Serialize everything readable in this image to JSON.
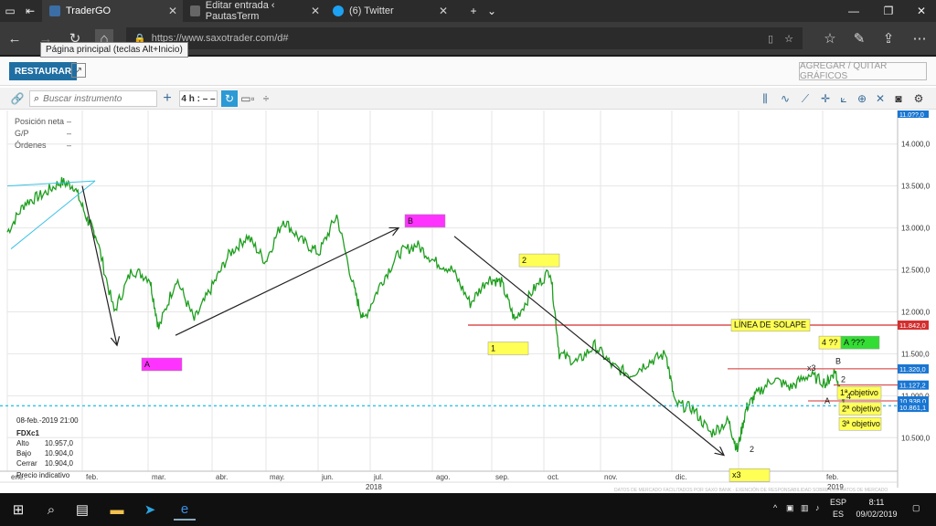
{
  "browser": {
    "tabs": [
      {
        "title": "TraderGO",
        "active": true
      },
      {
        "title": "Editar entrada ‹ PautasTerm",
        "active": false
      },
      {
        "title": "(6) Twitter",
        "active": false
      }
    ],
    "url": "https://www.saxotrader.com/d#",
    "home_tooltip": "Página principal (teclas Alt+Inicio)"
  },
  "app": {
    "restore_label": "RESTAURAR",
    "add_charts_label": "AGREGAR / QUITAR GRÁFICOS",
    "search_placeholder": "Buscar instrumento",
    "period": "4 h : – –",
    "panel": {
      "symbol_tag": "FDXc1",
      "position_label": "Posición neta",
      "position_value": "–",
      "pl_label": "G/P",
      "pl_value": "–",
      "orders_label": "Órdenes",
      "orders_value": "–"
    },
    "ohlc": {
      "date": "08-feb.-2019 21:00",
      "symbol": "FDXc1",
      "high_label": "Alto",
      "high": "10.957,0",
      "low_label": "Bajo",
      "low": "10.904,0",
      "close_label": "Cerrar",
      "close": "10.904,0",
      "note": "Precio indicativo"
    },
    "footer_note": "DATOS DE MERCADO FACILITADOS POR SAXO BANK · EXENCIÓN DE RESPONSABILIDAD SOBRE LOS DATOS DE MERCADO"
  },
  "chart_data": {
    "type": "line",
    "ylim": [
      10100,
      14400
    ],
    "yticks": [
      "14.000,0",
      "13.500,0",
      "13.000,0",
      "12.500,0",
      "12.000,0",
      "11.500,0",
      "11.000,0",
      "10.500,0"
    ],
    "ytick_values": [
      14000,
      13500,
      13000,
      12500,
      12000,
      11500,
      11000,
      10500
    ],
    "xticks": [
      "ene.",
      "feb.",
      "mar.",
      "abr.",
      "may.",
      "jun.",
      "jul.",
      "ago.",
      "sep.",
      "oct.",
      "nov.",
      "dic.",
      "ene.",
      "feb."
    ],
    "years": [
      "2018",
      "2019"
    ],
    "price_tags": [
      {
        "label": "11.842,0",
        "value": 11842,
        "color": "#d32f2f"
      },
      {
        "label": "11.320,0",
        "value": 11320,
        "color": "#1976d2"
      },
      {
        "label": "11.127,2",
        "value": 11127,
        "color": "#1976d2"
      },
      {
        "label": "10.938,0",
        "value": 10938,
        "color": "#1976d2"
      },
      {
        "label": "10.861,1",
        "value": 10861,
        "color": "#1976d2"
      }
    ],
    "current_price_label": "11.0??,0",
    "series": [
      {
        "x": [
          0,
          0.02,
          0.04,
          0.06,
          0.075,
          0.09,
          0.1,
          0.12,
          0.14,
          0.16,
          0.17,
          0.19,
          0.21,
          0.23,
          0.25,
          0.27,
          0.29,
          0.31,
          0.33,
          0.35,
          0.37,
          0.39,
          0.4,
          0.42,
          0.44,
          0.46,
          0.48,
          0.5,
          0.52,
          0.54,
          0.555,
          0.57,
          0.59,
          0.61,
          0.62,
          0.64,
          0.66,
          0.68,
          0.7,
          0.72,
          0.74,
          0.75,
          0.77,
          0.79,
          0.81,
          0.82,
          0.83,
          0.84,
          0.86,
          0.88,
          0.9,
          0.92,
          0.93,
          0.935,
          0.94
        ],
        "values": [
          12950,
          13300,
          13400,
          13550,
          13500,
          13100,
          12900,
          12000,
          12500,
          12400,
          11800,
          12400,
          11900,
          12300,
          12700,
          12900,
          12600,
          13100,
          12850,
          12700,
          13150,
          12250,
          11900,
          12350,
          12700,
          12800,
          12600,
          12500,
          12100,
          12400,
          12350,
          11900,
          12250,
          12500,
          11500,
          11400,
          11600,
          11350,
          11250,
          11400,
          11500,
          10900,
          10850,
          10550,
          10700,
          10350,
          10850,
          11000,
          11200,
          11100,
          11250,
          11150,
          11300,
          11050,
          10950
        ]
      }
    ],
    "annotations": [
      {
        "label": "A",
        "bg": "#ff33ff"
      },
      {
        "label": "B",
        "bg": "#ff33ff"
      },
      {
        "label": "1",
        "bg": "#ffff55"
      },
      {
        "label": "2",
        "bg": "#ffff55"
      },
      {
        "label": "x3",
        "bg": "#ffff55"
      },
      {
        "label": "LÍNEA DE SOLAPE",
        "bg": "#ffff55"
      },
      {
        "label": "4 ??",
        "bg": "#ffff55"
      },
      {
        "label": "A ???",
        "bg": "#33dd33"
      },
      {
        "label": "1ª objetivo",
        "bg": "#ffff55"
      },
      {
        "label": "2ª objetivo",
        "bg": "#ffff55"
      },
      {
        "label": "3ª objetivo",
        "bg": "#ffff55"
      }
    ],
    "small_labels": [
      "2",
      "x3",
      "B",
      "2",
      "4",
      "A"
    ]
  },
  "taskbar": {
    "lang_top": "ESP",
    "lang_bottom": "ES",
    "time": "8:11",
    "date": "09/02/2019"
  }
}
